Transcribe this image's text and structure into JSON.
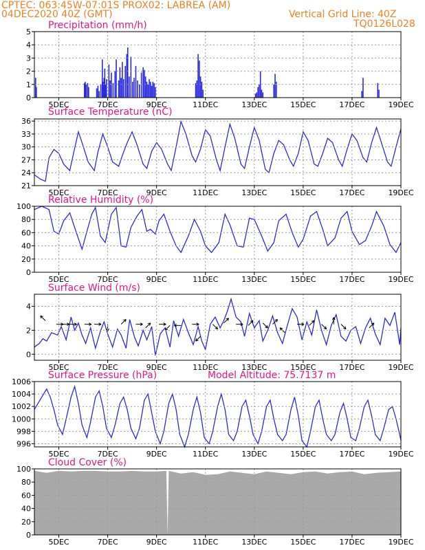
{
  "header": {
    "line1": "CPTEC:   063:45W-07:01S   PROX02: LABREA (AM)",
    "line2": "04DEC2020 40Z (GMT)",
    "vgrid": "Vertical Grid Line: 40Z",
    "code": "TQ0126L028"
  },
  "colors": {
    "header": "#f08020",
    "title": "#e8148a",
    "series": "#2a2ae0",
    "grid": "#999999",
    "cloud": "#a9a9a9",
    "vector": "#000000"
  },
  "x_axis": {
    "start_day": 4,
    "end_day": 19,
    "tick_days": [
      5,
      7,
      9,
      11,
      13,
      15,
      17,
      19
    ],
    "tick_labels": [
      "5DEC",
      "7DEC",
      "9DEC",
      "11DEC",
      "13DEC",
      "15DEC",
      "17DEC",
      "19DEC"
    ]
  },
  "chart_data": [
    {
      "id": "precip",
      "type": "bar",
      "title": "Precipitation (mm/h)",
      "ylim": [
        0,
        5
      ],
      "yticks": [
        0,
        1,
        2,
        3,
        4,
        5
      ],
      "x": [
        4.05,
        4.08,
        6.05,
        6.08,
        6.12,
        6.18,
        6.22,
        6.55,
        6.6,
        6.65,
        6.72,
        6.78,
        6.82,
        6.85,
        6.88,
        6.92,
        6.95,
        7.05,
        7.1,
        7.15,
        7.22,
        7.3,
        7.35,
        7.45,
        7.5,
        7.55,
        7.6,
        7.65,
        7.72,
        7.78,
        7.82,
        7.88,
        7.95,
        8.02,
        8.08,
        8.15,
        8.22,
        8.3,
        8.38,
        8.45,
        8.5,
        8.55,
        8.6,
        8.65,
        8.7,
        8.75,
        8.8,
        8.85,
        8.9,
        8.95,
        10.6,
        10.65,
        10.7,
        10.75,
        10.8,
        10.85,
        10.9,
        13.05,
        13.1,
        13.15,
        13.2,
        13.25,
        13.3,
        13.35,
        13.8,
        13.85,
        13.9,
        17.4,
        17.45,
        18.05,
        18.1
      ],
      "values": [
        1.5,
        0.8,
        1.1,
        1.2,
        1.0,
        1.1,
        0.8,
        0.7,
        0.9,
        0.5,
        1.0,
        2.9,
        1.2,
        1.5,
        2.2,
        1.0,
        1.4,
        2.5,
        1.3,
        1.9,
        1.1,
        2.0,
        2.9,
        1.3,
        2.3,
        1.5,
        2.7,
        1.4,
        2.4,
        3.3,
        3.8,
        1.6,
        3.1,
        1.2,
        1.5,
        2.4,
        1.3,
        1.0,
        1.9,
        2.3,
        2.1,
        1.6,
        1.2,
        1.0,
        1.4,
        1.2,
        0.9,
        1.2,
        1.1,
        0.8,
        1.1,
        1.3,
        3.3,
        2.8,
        1.6,
        1.2,
        0.6,
        0.3,
        0.4,
        0.8,
        1.0,
        2.0,
        0.6,
        0.4,
        1.0,
        1.8,
        1.2,
        0.5,
        1.5,
        1.1,
        0.6
      ]
    },
    {
      "id": "temp",
      "type": "line",
      "title": "Surface Temperature (nC)",
      "ylim": [
        21,
        36.5
      ],
      "yticks": [
        21,
        24,
        27,
        30,
        33,
        36
      ],
      "x": [
        4.0,
        4.25,
        4.45,
        4.6,
        4.8,
        5.0,
        5.2,
        5.45,
        5.6,
        5.8,
        5.95,
        6.2,
        6.45,
        6.6,
        6.8,
        7.0,
        7.2,
        7.45,
        7.6,
        7.8,
        8.0,
        8.2,
        8.45,
        8.6,
        8.8,
        9.0,
        9.2,
        9.45,
        9.6,
        9.8,
        10.0,
        10.2,
        10.45,
        10.6,
        10.8,
        11.0,
        11.2,
        11.45,
        11.6,
        11.8,
        12.0,
        12.2,
        12.45,
        12.6,
        12.8,
        13.0,
        13.2,
        13.45,
        13.6,
        13.8,
        14.0,
        14.2,
        14.45,
        14.6,
        14.8,
        15.0,
        15.2,
        15.45,
        15.6,
        15.8,
        16.0,
        16.2,
        16.45,
        16.6,
        16.8,
        17.0,
        17.2,
        17.45,
        17.6,
        17.8,
        18.0,
        18.2,
        18.45,
        18.6,
        18.8,
        19.0
      ],
      "values": [
        23.5,
        22.5,
        22.0,
        27.5,
        29.4,
        28.5,
        26.0,
        24.5,
        28.5,
        33.5,
        31.0,
        26.5,
        24.5,
        28.8,
        33.0,
        30.0,
        26.5,
        25.5,
        28.0,
        31.0,
        33.5,
        30.5,
        26.0,
        25.0,
        29.0,
        31.0,
        29.5,
        26.0,
        24.5,
        30.0,
        35.9,
        33.0,
        28.0,
        26.5,
        29.5,
        34.0,
        32.5,
        27.0,
        24.5,
        30.0,
        35.3,
        32.0,
        26.0,
        25.0,
        30.0,
        34.5,
        31.5,
        24.8,
        24.0,
        28.5,
        31.5,
        30.5,
        27.0,
        25.5,
        28.5,
        33.5,
        31.5,
        26.0,
        25.5,
        28.5,
        32.0,
        31.0,
        27.0,
        25.5,
        29.5,
        33.0,
        31.5,
        27.5,
        26.5,
        31.0,
        34.5,
        31.0,
        26.5,
        25.5,
        30.0,
        34.2
      ]
    },
    {
      "id": "rh",
      "type": "line",
      "title": "Relative Humidity (%)",
      "ylim": [
        0,
        100
      ],
      "yticks": [
        0,
        20,
        40,
        60,
        80,
        100
      ],
      "x": [
        4.0,
        4.3,
        4.6,
        4.8,
        5.0,
        5.2,
        5.45,
        5.7,
        5.95,
        6.15,
        6.35,
        6.5,
        6.7,
        6.9,
        7.15,
        7.35,
        7.55,
        7.75,
        7.95,
        8.2,
        8.4,
        8.6,
        8.75,
        8.95,
        9.1,
        9.3,
        9.55,
        9.8,
        10.0,
        10.3,
        10.55,
        10.8,
        11.0,
        11.25,
        11.55,
        11.8,
        12.0,
        12.3,
        12.55,
        12.8,
        13.0,
        13.3,
        13.55,
        13.8,
        14.0,
        14.3,
        14.55,
        14.8,
        15.0,
        15.3,
        15.55,
        15.8,
        16.0,
        16.3,
        16.55,
        16.8,
        17.0,
        17.3,
        17.55,
        17.8,
        18.0,
        18.3,
        18.55,
        18.8,
        19.0
      ],
      "values": [
        95,
        100,
        95,
        62,
        58,
        78,
        90,
        62,
        35,
        62,
        88,
        98,
        55,
        45,
        88,
        98,
        40,
        38,
        68,
        85,
        95,
        62,
        65,
        58,
        78,
        88,
        62,
        40,
        30,
        55,
        80,
        62,
        40,
        30,
        45,
        88,
        72,
        40,
        38,
        82,
        80,
        55,
        32,
        45,
        78,
        88,
        60,
        38,
        50,
        85,
        92,
        65,
        40,
        52,
        82,
        92,
        62,
        42,
        48,
        70,
        92,
        70,
        42,
        30,
        45
      ]
    },
    {
      "id": "wind",
      "type": "line",
      "title": "Surface Wind (m/s)",
      "ylim": [
        -0.5,
        5
      ],
      "yticks": [
        0,
        2,
        4
      ],
      "x": [
        4.0,
        4.2,
        4.35,
        4.5,
        4.7,
        4.95,
        5.1,
        5.3,
        5.5,
        5.65,
        5.8,
        5.95,
        6.1,
        6.3,
        6.5,
        6.7,
        6.85,
        7.0,
        7.2,
        7.4,
        7.55,
        7.75,
        7.9,
        8.1,
        8.25,
        8.45,
        8.6,
        8.8,
        8.95,
        9.15,
        9.35,
        9.55,
        9.7,
        9.9,
        10.1,
        10.3,
        10.5,
        10.7,
        10.85,
        11.0,
        11.2,
        11.4,
        11.6,
        11.75,
        11.9,
        12.05,
        12.25,
        12.45,
        12.6,
        12.8,
        13.0,
        13.2,
        13.35,
        13.55,
        13.75,
        13.95,
        14.15,
        14.35,
        14.55,
        14.75,
        14.95,
        15.15,
        15.35,
        15.55,
        15.75,
        15.95,
        16.15,
        16.35,
        16.55,
        16.75,
        16.95,
        17.15,
        17.35,
        17.55,
        17.75,
        17.95,
        18.15,
        18.35,
        18.55,
        18.75,
        18.95,
        19.0
      ],
      "values": [
        0.6,
        0.9,
        1.3,
        1.1,
        1.8,
        1.6,
        2.3,
        1.2,
        3.1,
        2.0,
        2.6,
        1.6,
        0.9,
        2.2,
        0.5,
        1.9,
        2.7,
        1.7,
        0.6,
        2.1,
        1.6,
        0.5,
        2.9,
        1.4,
        0.7,
        2.0,
        1.2,
        2.3,
        -0.1,
        1.7,
        2.2,
        0.6,
        2.8,
        1.5,
        2.9,
        1.8,
        0.8,
        2.3,
        1.1,
        0.4,
        2.5,
        3.1,
        2.2,
        2.8,
        3.6,
        4.6,
        3.1,
        2.7,
        1.5,
        3.4,
        2.2,
        2.8,
        1.1,
        2.0,
        3.2,
        1.8,
        0.9,
        2.4,
        3.8,
        3.1,
        1.2,
        2.7,
        1.6,
        3.7,
        2.0,
        0.8,
        2.4,
        3.3,
        1.5,
        1.1,
        2.0,
        2.3,
        0.9,
        2.2,
        3.0,
        1.7,
        0.8,
        3.0,
        2.4,
        3.5,
        0.8,
        2.2
      ]
    },
    {
      "id": "pres",
      "type": "line",
      "title": "Surface Pressure (hPa)",
      "subtitle": "Model Altitude: 75.7137 m",
      "ylim": [
        995.5,
        1006
      ],
      "yticks": [
        996,
        998,
        1000,
        1002,
        1004,
        1006
      ],
      "x": [
        4.0,
        4.15,
        4.3,
        4.5,
        4.65,
        4.8,
        4.95,
        5.15,
        5.3,
        5.5,
        5.65,
        5.8,
        5.95,
        6.15,
        6.3,
        6.5,
        6.65,
        6.8,
        6.95,
        7.15,
        7.3,
        7.5,
        7.65,
        7.8,
        7.95,
        8.15,
        8.3,
        8.5,
        8.65,
        8.8,
        8.95,
        9.15,
        9.3,
        9.5,
        9.65,
        9.8,
        9.95,
        10.15,
        10.3,
        10.5,
        10.65,
        10.8,
        10.95,
        11.15,
        11.3,
        11.5,
        11.65,
        11.8,
        11.95,
        12.15,
        12.3,
        12.5,
        12.65,
        12.8,
        12.95,
        13.15,
        13.3,
        13.5,
        13.65,
        13.8,
        13.95,
        14.15,
        14.3,
        14.5,
        14.65,
        14.8,
        14.95,
        15.15,
        15.3,
        15.5,
        15.65,
        15.8,
        15.95,
        16.15,
        16.3,
        16.5,
        16.65,
        16.8,
        16.95,
        17.15,
        17.3,
        17.5,
        17.65,
        17.8,
        17.95,
        18.15,
        18.3,
        18.5,
        18.65,
        18.8,
        18.95,
        19.0
      ],
      "values": [
        1001.5,
        1002.5,
        1003.5,
        1004.8,
        1003.5,
        1001.5,
        999.0,
        997.5,
        1000.0,
        1003.5,
        1005.2,
        1002.5,
        999.0,
        997.0,
        999.5,
        1003.5,
        1004.5,
        1002.0,
        998.5,
        997.0,
        999.0,
        1002.5,
        1003.5,
        1001.5,
        998.5,
        996.8,
        998.5,
        1003.0,
        1004.0,
        1001.0,
        998.0,
        996.0,
        998.0,
        1002.5,
        1004.0,
        1001.5,
        997.5,
        995.5,
        997.5,
        1001.5,
        1003.5,
        1001.0,
        997.0,
        996.0,
        998.0,
        1002.0,
        1004.0,
        1001.5,
        997.5,
        996.5,
        998.0,
        1002.0,
        1003.0,
        1000.5,
        997.5,
        996.0,
        998.0,
        1002.0,
        1003.0,
        1000.0,
        997.5,
        996.5,
        997.5,
        1001.5,
        1003.5,
        1000.5,
        996.5,
        995.5,
        998.0,
        1002.0,
        1003.0,
        1000.0,
        997.5,
        996.5,
        997.5,
        1001.0,
        1002.5,
        1000.0,
        997.0,
        996.5,
        998.5,
        1002.0,
        1003.0,
        1000.5,
        997.5,
        996.5,
        998.5,
        1001.5,
        1002.0,
        1000.0,
        997.5,
        996.5
      ]
    },
    {
      "id": "cloud",
      "type": "area",
      "title": "Cloud Cover (%)",
      "ylim": [
        0,
        100
      ],
      "yticks": [
        0,
        20,
        40,
        60,
        80,
        100
      ],
      "x": [
        4.0,
        4.5,
        5.0,
        5.5,
        6.0,
        6.5,
        7.0,
        7.5,
        8.0,
        8.5,
        9.0,
        9.4,
        9.45,
        9.5,
        10.0,
        10.5,
        11.0,
        11.5,
        12.0,
        12.5,
        13.0,
        13.5,
        14.0,
        14.5,
        15.0,
        15.5,
        16.0,
        16.5,
        17.0,
        17.5,
        18.0,
        18.5,
        19.0
      ],
      "values": [
        97,
        94,
        97,
        96,
        97,
        97,
        96,
        96,
        97,
        96,
        96,
        97,
        0,
        97,
        93,
        95,
        91,
        92,
        96,
        94,
        92,
        96,
        94,
        92,
        95,
        96,
        93,
        95,
        96,
        92,
        94,
        95,
        96
      ]
    }
  ]
}
